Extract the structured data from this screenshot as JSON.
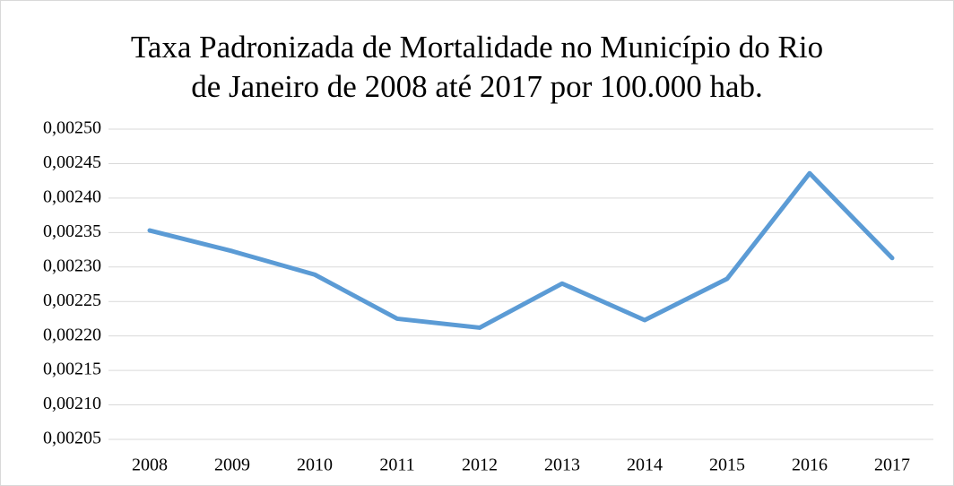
{
  "chart_data": {
    "type": "line",
    "title": "Taxa Padronizada de Mortalidade no Município do Rio\nde Janeiro de 2008 até 2017 por 100.000 hab.",
    "categories": [
      "2008",
      "2009",
      "2010",
      "2011",
      "2012",
      "2013",
      "2014",
      "2015",
      "2016",
      "2017"
    ],
    "series": [
      {
        "color": "#5b9bd5",
        "values": [
          0.002353,
          0.002323,
          0.002289,
          0.002225,
          0.002212,
          0.002276,
          0.002223,
          0.002283,
          0.002436,
          0.002313
        ]
      }
    ],
    "ylim": [
      0.00205,
      0.0025
    ],
    "yticks": [
      {
        "value": 0.00205,
        "label": "0,00205"
      },
      {
        "value": 0.0021,
        "label": "0,00210"
      },
      {
        "value": 0.00215,
        "label": "0,00215"
      },
      {
        "value": 0.0022,
        "label": "0,00220"
      },
      {
        "value": 0.00225,
        "label": "0,00225"
      },
      {
        "value": 0.0023,
        "label": "0,00230"
      },
      {
        "value": 0.00235,
        "label": "0,00235"
      },
      {
        "value": 0.0024,
        "label": "0,00240"
      },
      {
        "value": 0.00245,
        "label": "0,00245"
      },
      {
        "value": 0.0025,
        "label": "0,00250"
      }
    ],
    "grid": true
  }
}
